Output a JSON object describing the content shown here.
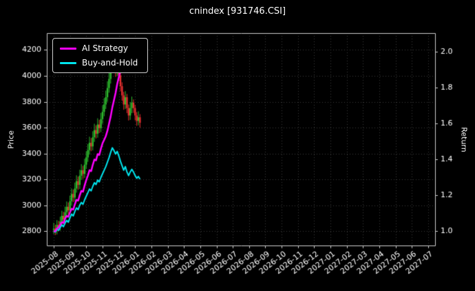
{
  "window": {
    "title": "cnindex [931746.CSI]"
  },
  "chart_data": {
    "type": "candlestick+line",
    "title": "cnindex [931746.CSI]",
    "xlabel": "",
    "ylabel_left": "Price",
    "ylabel_right": "Return",
    "legend_position": "upper-left",
    "grid": "dotted",
    "x_ticks": [
      "2025-08",
      "2025-09",
      "2025-10",
      "2025-11",
      "2025-12",
      "2026-01",
      "2026-02",
      "2026-03",
      "2026-04",
      "2026-05",
      "2026-06",
      "2026-07",
      "2026-08",
      "2026-09",
      "2026-10",
      "2026-11",
      "2026-12",
      "2027-01",
      "2027-02",
      "2027-03",
      "2027-04",
      "2027-05",
      "2027-06",
      "2027-07"
    ],
    "price_ticks": [
      2800,
      3000,
      3200,
      3400,
      3600,
      3800,
      4000,
      4200
    ],
    "return_ticks": [
      1.0,
      1.2,
      1.4,
      1.6,
      1.8,
      2.0
    ],
    "return_tick_labels": [
      "1.0",
      "1.2",
      "1.4",
      "1.6",
      "1.8",
      "2.0"
    ],
    "price_range": [
      2690,
      4330
    ],
    "return_range": [
      0.92,
      2.105
    ],
    "colors": {
      "background": "#000000",
      "text": "#ffffff",
      "grid": "#3c3c3c",
      "axis_border": "#cfcfcf",
      "up": "#2ebd2e",
      "down": "#e83030",
      "ai": "#ff00ff",
      "bh": "#00e5ee"
    },
    "candles": {
      "x": [
        0,
        0.1,
        0.2,
        0.3,
        0.4,
        0.5,
        0.6,
        0.7,
        0.8,
        0.9,
        1,
        1.1,
        1.2,
        1.3,
        1.4,
        1.5,
        1.6,
        1.7,
        1.8,
        1.9,
        2,
        2.1,
        2.2,
        2.3,
        2.4,
        2.5,
        2.6,
        2.7,
        2.8,
        2.9,
        3,
        3.1,
        3.2,
        3.3,
        3.4,
        3.5,
        3.6,
        3.7,
        3.8,
        3.9,
        4,
        4.1,
        4.2,
        4.3,
        4.4,
        4.5,
        4.6,
        4.7,
        4.8,
        4.9,
        5,
        5.1,
        5.2,
        5.3
      ],
      "open": [
        2810,
        2820,
        2806,
        2848,
        2834,
        2876,
        2919,
        2891,
        2947,
        2989,
        2961,
        3032,
        3088,
        3060,
        3130,
        3187,
        3158,
        3229,
        3271,
        3243,
        3314,
        3370,
        3426,
        3483,
        3455,
        3525,
        3581,
        3553,
        3624,
        3596,
        3666,
        3722,
        3779,
        3835,
        3906,
        3976,
        4061,
        4131,
        4089,
        4033,
        4075,
        4004,
        3920,
        3849,
        3779,
        3835,
        3751,
        3694,
        3751,
        3793,
        3751,
        3694,
        3652,
        3680
      ],
      "high": [
        2865,
        2851,
        2886,
        2880,
        2912,
        2958,
        2950,
        2990,
        3030,
        3022,
        3075,
        3130,
        3122,
        3176,
        3232,
        3222,
        3275,
        3318,
        3305,
        3360,
        3418,
        3474,
        3530,
        3520,
        3572,
        3630,
        3618,
        3672,
        3660,
        3714,
        3772,
        3828,
        3886,
        3958,
        4030,
        4118,
        4188,
        4160,
        4120,
        4126,
        4098,
        4030,
        3950,
        3876,
        3882,
        3860,
        3778,
        3798,
        3840,
        3818,
        3776,
        3720,
        3726,
        3704
      ],
      "low": [
        2778,
        2770,
        2775,
        2800,
        2805,
        2846,
        2858,
        2862,
        2915,
        2928,
        2930,
        3000,
        3024,
        3030,
        3098,
        3120,
        3126,
        3196,
        3204,
        3212,
        3282,
        3336,
        3392,
        3418,
        3424,
        3490,
        3516,
        3522,
        3558,
        3565,
        3630,
        3688,
        3744,
        3800,
        3870,
        3940,
        4022,
        4048,
        3992,
        3998,
        3962,
        3880,
        3808,
        3738,
        3744,
        3712,
        3655,
        3660,
        3712,
        3714,
        3656,
        3614,
        3618,
        3600
      ],
      "close": [
        2820,
        2806,
        2848,
        2834,
        2876,
        2919,
        2891,
        2947,
        2989,
        2961,
        3032,
        3088,
        3060,
        3130,
        3187,
        3158,
        3229,
        3271,
        3243,
        3314,
        3370,
        3426,
        3483,
        3455,
        3525,
        3581,
        3553,
        3624,
        3596,
        3666,
        3722,
        3779,
        3835,
        3906,
        3976,
        4061,
        4131,
        4089,
        4033,
        4075,
        4004,
        3920,
        3849,
        3779,
        3835,
        3751,
        3694,
        3751,
        3793,
        3751,
        3694,
        3652,
        3680,
        3638
      ]
    },
    "series": [
      {
        "name": "AI Strategy",
        "axis": "return",
        "color": "#ff00ff",
        "width": 2.5,
        "x": [
          0,
          0.1,
          0.2,
          0.3,
          0.4,
          0.5,
          0.6,
          0.7,
          0.8,
          0.9,
          1,
          1.1,
          1.2,
          1.3,
          1.4,
          1.5,
          1.6,
          1.7,
          1.8,
          1.9,
          2,
          2.1,
          2.2,
          2.3,
          2.4,
          2.5,
          2.6,
          2.7,
          2.8,
          2.9,
          3,
          3.1,
          3.2,
          3.3,
          3.4,
          3.5,
          3.6,
          3.7,
          3.8,
          3.9,
          4,
          4.1,
          4.2,
          4.3,
          4.4,
          4.5,
          4.6,
          4.7
        ],
        "values": [
          1.0,
          1.0,
          1.015,
          1.02,
          1.035,
          1.05,
          1.045,
          1.07,
          1.085,
          1.08,
          1.105,
          1.125,
          1.12,
          1.15,
          1.175,
          1.17,
          1.2,
          1.225,
          1.22,
          1.255,
          1.285,
          1.31,
          1.34,
          1.335,
          1.37,
          1.4,
          1.395,
          1.43,
          1.425,
          1.46,
          1.49,
          1.51,
          1.53,
          1.56,
          1.6,
          1.64,
          1.69,
          1.73,
          1.77,
          1.82,
          1.86,
          1.9,
          1.93,
          1.96,
          1.94,
          1.97,
          1.93,
          1.905
        ]
      },
      {
        "name": "Buy-and-Hold",
        "axis": "return",
        "color": "#00e5ee",
        "width": 2,
        "x": [
          0,
          0.1,
          0.2,
          0.3,
          0.4,
          0.5,
          0.6,
          0.7,
          0.8,
          0.9,
          1,
          1.1,
          1.2,
          1.3,
          1.4,
          1.5,
          1.6,
          1.7,
          1.8,
          1.9,
          2,
          2.1,
          2.2,
          2.3,
          2.4,
          2.5,
          2.6,
          2.7,
          2.8,
          2.9,
          3,
          3.1,
          3.2,
          3.3,
          3.4,
          3.5,
          3.6,
          3.7,
          3.8,
          3.9,
          4,
          4.1,
          4.2,
          4.3,
          4.4,
          4.5,
          4.6,
          4.7,
          4.8,
          4.9,
          5,
          5.1,
          5.2,
          5.3
        ],
        "values": [
          1.0,
          0.995,
          1.01,
          1.005,
          1.02,
          1.035,
          1.025,
          1.045,
          1.06,
          1.05,
          1.075,
          1.095,
          1.085,
          1.11,
          1.13,
          1.12,
          1.145,
          1.16,
          1.15,
          1.175,
          1.195,
          1.215,
          1.235,
          1.225,
          1.25,
          1.27,
          1.26,
          1.285,
          1.275,
          1.3,
          1.32,
          1.34,
          1.36,
          1.385,
          1.41,
          1.44,
          1.465,
          1.45,
          1.43,
          1.445,
          1.42,
          1.39,
          1.365,
          1.34,
          1.36,
          1.33,
          1.31,
          1.33,
          1.345,
          1.33,
          1.31,
          1.295,
          1.305,
          1.29
        ]
      }
    ]
  }
}
